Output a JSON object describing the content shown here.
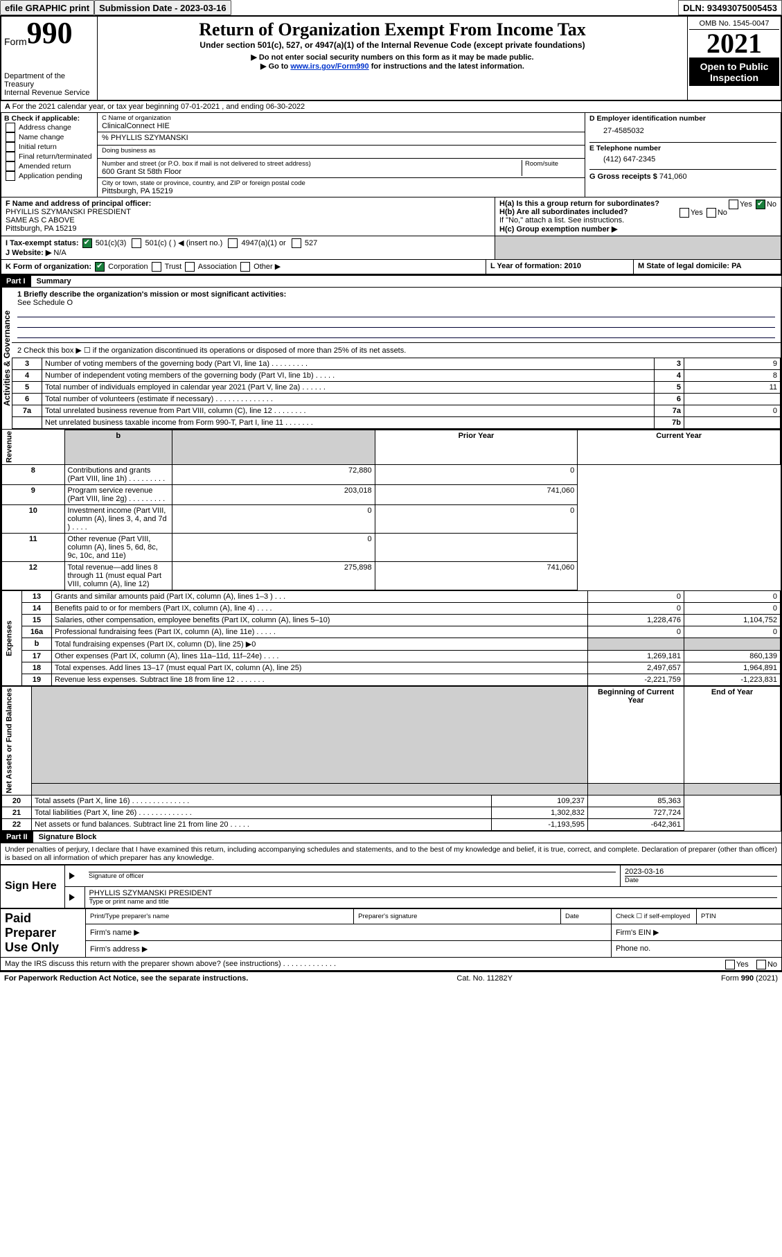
{
  "topbar": {
    "efile": "efile GRAPHIC print",
    "submission_date_label": "Submission Date - 2023-03-16",
    "dln": "DLN: 93493075005453"
  },
  "header": {
    "form_prefix": "Form",
    "form_number": "990",
    "department": "Department of the Treasury",
    "irs": "Internal Revenue Service",
    "title": "Return of Organization Exempt From Income Tax",
    "subtitle": "Under section 501(c), 527, or 4947(a)(1) of the Internal Revenue Code (except private foundations)",
    "note1": "▶ Do not enter social security numbers on this form as it may be made public.",
    "note2_pre": "▶ Go to ",
    "note2_link": "www.irs.gov/Form990",
    "note2_post": " for instructions and the latest information.",
    "omb": "OMB No. 1545-0047",
    "year": "2021",
    "open": "Open to Public Inspection"
  },
  "line_a": "For the 2021 calendar year, or tax year beginning 07-01-2021   , and ending 06-30-2022",
  "section_b": {
    "heading": "B Check if applicable:",
    "items": [
      "Address change",
      "Name change",
      "Initial return",
      "Final return/terminated",
      "Amended return",
      "Application pending"
    ]
  },
  "section_c": {
    "name_label": "C Name of organization",
    "name": "ClinicalConnect HIE",
    "care_of": "% PHYLLIS SZYMANSKI",
    "dba_label": "Doing business as",
    "street_label": "Number and street (or P.O. box if mail is not delivered to street address)",
    "room_label": "Room/suite",
    "street": "600 Grant St 58th Floor",
    "city_label": "City or town, state or province, country, and ZIP or foreign postal code",
    "city": "Pittsburgh, PA  15219"
  },
  "section_d": {
    "label": "D Employer identification number",
    "value": "27-4585032"
  },
  "section_e": {
    "label": "E Telephone number",
    "value": "(412) 647-2345"
  },
  "section_g": {
    "label": "G Gross receipts $",
    "value": "741,060"
  },
  "section_f": {
    "label": "F  Name and address of principal officer:",
    "name": "PHYILLIS SZYMANSKI PRESDIENT",
    "addr1": "SAME AS C ABOVE",
    "addr2": "Pittsburgh, PA  15219"
  },
  "section_h": {
    "ha_label": "H(a)  Is this a group return for subordinates?",
    "hb_label": "H(b)  Are all subordinates included?",
    "h_note": "If \"No,\" attach a list. See instructions.",
    "hc_label": "H(c)  Group exemption number ▶",
    "yes": "Yes",
    "no": "No"
  },
  "line_i": {
    "label": "I   Tax-exempt status:",
    "o1": "501(c)(3)",
    "o2_pre": "501(c) (  ) ◀ (insert no.)",
    "o3": "4947(a)(1) or",
    "o4": "527"
  },
  "line_j": {
    "label": "J   Website: ▶",
    "value": "N/A"
  },
  "line_k": {
    "label": "K Form of organization:",
    "o1": "Corporation",
    "o2": "Trust",
    "o3": "Association",
    "o4": "Other ▶"
  },
  "line_l": {
    "label": "L Year of formation: 2010"
  },
  "line_m": {
    "label": "M State of legal domicile: PA"
  },
  "part1": {
    "bar": "Part I",
    "title": "Summary"
  },
  "summary": {
    "line1_label": "1  Briefly describe the organization's mission or most significant activities:",
    "line1_text": "See Schedule O",
    "line2": "2  Check this box ▶ ☐  if the organization discontinued its operations or disposed of more than 25% of its net assets.",
    "line3": "Number of voting members of the governing body (Part VI, line 1a)   .   .   .   .   .   .   .   .   .",
    "line4": "Number of independent voting members of the governing body (Part VI, line 1b)   .   .   .   .   .",
    "line5": "Total number of individuals employed in calendar year 2021 (Part V, line 2a)   .   .   .   .   .   .",
    "line6": "Total number of volunteers (estimate if necessary)   .   .   .   .   .   .   .   .   .   .   .   .   .   .",
    "line7a": "Total unrelated business revenue from Part VIII, column (C), line 12   .   .   .   .   .   .   .   .",
    "line7b": "Net unrelated business taxable income from Form 990-T, Part I, line 11   .   .   .   .   .   .   .",
    "v3": "9",
    "v4": "8",
    "v5": "11",
    "v6": "",
    "v7a": "0",
    "v7b": ""
  },
  "rev_exp": {
    "col_prior": "Prior Year",
    "col_current": "Current Year",
    "rows": [
      {
        "n": "8",
        "label": "Contributions and grants (Part VIII, line 1h)   .   .   .   .   .   .   .   .   .",
        "p": "72,880",
        "c": "0"
      },
      {
        "n": "9",
        "label": "Program service revenue (Part VIII, line 2g)   .   .   .   .   .   .   .   .   .",
        "p": "203,018",
        "c": "741,060"
      },
      {
        "n": "10",
        "label": "Investment income (Part VIII, column (A), lines 3, 4, and 7d )   .   .   .   .",
        "p": "0",
        "c": "0"
      },
      {
        "n": "11",
        "label": "Other revenue (Part VIII, column (A), lines 5, 6d, 8c, 9c, 10c, and 11e)",
        "p": "0",
        "c": ""
      },
      {
        "n": "12",
        "label": "Total revenue—add lines 8 through 11 (must equal Part VIII, column (A), line 12)",
        "p": "275,898",
        "c": "741,060"
      },
      {
        "n": "13",
        "label": "Grants and similar amounts paid (Part IX, column (A), lines 1–3 )   .   .   .",
        "p": "0",
        "c": "0"
      },
      {
        "n": "14",
        "label": "Benefits paid to or for members (Part IX, column (A), line 4)   .   .   .   .",
        "p": "0",
        "c": "0"
      },
      {
        "n": "15",
        "label": "Salaries, other compensation, employee benefits (Part IX, column (A), lines 5–10)",
        "p": "1,228,476",
        "c": "1,104,752"
      },
      {
        "n": "16a",
        "label": "Professional fundraising fees (Part IX, column (A), line 11e)   .   .   .   .   .",
        "p": "0",
        "c": "0"
      },
      {
        "n": "b",
        "label": "Total fundraising expenses (Part IX, column (D), line 25) ▶0",
        "p": "shaded",
        "c": "shaded"
      },
      {
        "n": "17",
        "label": "Other expenses (Part IX, column (A), lines 11a–11d, 11f–24e)   .   .   .   .",
        "p": "1,269,181",
        "c": "860,139"
      },
      {
        "n": "18",
        "label": "Total expenses. Add lines 13–17 (must equal Part IX, column (A), line 25)",
        "p": "2,497,657",
        "c": "1,964,891"
      },
      {
        "n": "19",
        "label": "Revenue less expenses. Subtract line 18 from line 12   .   .   .   .   .   .   .",
        "p": "-2,221,759",
        "c": "-1,223,831"
      }
    ],
    "col_begin": "Beginning of Current Year",
    "col_end": "End of Year",
    "net_rows": [
      {
        "n": "20",
        "label": "Total assets (Part X, line 16)   .   .   .   .   .   .   .   .   .   .   .   .   .   .",
        "p": "109,237",
        "c": "85,363"
      },
      {
        "n": "21",
        "label": "Total liabilities (Part X, line 26)   .   .   .   .   .   .   .   .   .   .   .   .   .",
        "p": "1,302,832",
        "c": "727,724"
      },
      {
        "n": "22",
        "label": "Net assets or fund balances. Subtract line 21 from line 20   .   .   .   .   .",
        "p": "-1,193,595",
        "c": "-642,361"
      }
    ]
  },
  "vlabels": {
    "act": "Activities & Governance",
    "rev": "Revenue",
    "exp": "Expenses",
    "net": "Net Assets or Fund Balances"
  },
  "part2": {
    "bar": "Part II",
    "title": "Signature Block"
  },
  "signature": {
    "declaration": "Under penalties of perjury, I declare that I have examined this return, including accompanying schedules and statements, and to the best of my knowledge and belief, it is true, correct, and complete. Declaration of preparer (other than officer) is based on all information of which preparer has any knowledge.",
    "sign_here": "Sign Here",
    "sig_label": "Signature of officer",
    "date_label": "Date",
    "date_val": "2023-03-16",
    "name_line": "PHYLLIS SZYMANSKI PRESIDENT",
    "name_label": "Type or print name and title",
    "paid": "Paid Preparer Use Only",
    "p1": "Print/Type preparer's name",
    "p2": "Preparer's signature",
    "p3": "Date",
    "p4": "Check ☐ if self-employed",
    "p5": "PTIN",
    "firm_name": "Firm's name    ▶",
    "firm_ein": "Firm's EIN ▶",
    "firm_addr": "Firm's address ▶",
    "phone": "Phone no.",
    "may_discuss": "May the IRS discuss this return with the preparer shown above? (see instructions)   .   .   .   .   .   .   .   .   .   .   .   .   ."
  },
  "footer": {
    "left": "For Paperwork Reduction Act Notice, see the separate instructions.",
    "center": "Cat. No. 11282Y",
    "right": "Form 990 (2021)"
  }
}
